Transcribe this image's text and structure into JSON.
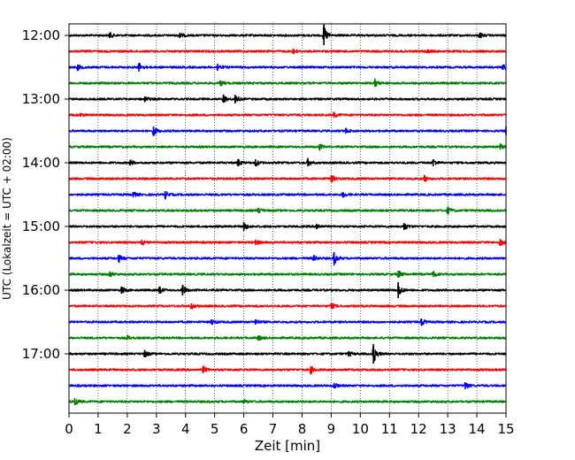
{
  "chart_data": {
    "type": "line",
    "subtype": "seismogram-helicorder",
    "xlabel": "Zeit  [min]",
    "ylabel": "UTC (Lokalzeit = UTC + 02:00)",
    "xlim": [
      0,
      15
    ],
    "x_ticks": [
      "0",
      "1",
      "2",
      "3",
      "4",
      "5",
      "6",
      "7",
      "8",
      "9",
      "10",
      "11",
      "12",
      "13",
      "14",
      "15"
    ],
    "y_tick_labels": [
      "12:00",
      "13:00",
      "14:00",
      "15:00",
      "16:00",
      "17:00"
    ],
    "grid": "vertical dotted lines at each minute",
    "trace_interval_minutes": 15,
    "trace_colors": [
      "#000000",
      "#ff0000",
      "#0000ff",
      "#008000"
    ],
    "traces": [
      {
        "start": "12:00",
        "color": "#000000",
        "events": [
          {
            "t": 8.75,
            "amp": 11
          },
          {
            "t": 1.4,
            "amp": 3
          },
          {
            "t": 3.8,
            "amp": 3
          },
          {
            "t": 14.1,
            "amp": 3
          }
        ]
      },
      {
        "start": "12:15",
        "color": "#ff0000",
        "events": [
          {
            "t": 7.7,
            "amp": 3
          },
          {
            "t": 12.3,
            "amp": 2
          }
        ]
      },
      {
        "start": "12:30",
        "color": "#0000ff",
        "events": [
          {
            "t": 2.4,
            "amp": 5
          },
          {
            "t": 5.1,
            "amp": 4
          },
          {
            "t": 0.3,
            "amp": 3
          },
          {
            "t": 14.9,
            "amp": 3
          }
        ]
      },
      {
        "start": "12:45",
        "color": "#008000",
        "events": [
          {
            "t": 10.5,
            "amp": 4
          },
          {
            "t": 5.2,
            "amp": 3
          }
        ]
      },
      {
        "start": "13:00",
        "color": "#000000",
        "events": [
          {
            "t": 5.3,
            "amp": 4
          },
          {
            "t": 5.7,
            "amp": 5
          },
          {
            "t": 2.6,
            "amp": 3
          }
        ]
      },
      {
        "start": "13:15",
        "color": "#ff0000",
        "events": [
          {
            "t": 9.1,
            "amp": 3
          },
          {
            "t": 0.4,
            "amp": 2
          }
        ]
      },
      {
        "start": "13:30",
        "color": "#0000ff",
        "events": [
          {
            "t": 2.9,
            "amp": 5
          },
          {
            "t": 9.5,
            "amp": 3
          },
          {
            "t": 15.0,
            "amp": 5
          }
        ]
      },
      {
        "start": "13:45",
        "color": "#008000",
        "events": [
          {
            "t": 8.6,
            "amp": 3
          },
          {
            "t": 14.8,
            "amp": 3
          }
        ]
      },
      {
        "start": "14:00",
        "color": "#000000",
        "events": [
          {
            "t": 5.8,
            "amp": 4
          },
          {
            "t": 6.4,
            "amp": 4
          },
          {
            "t": 8.2,
            "amp": 4
          },
          {
            "t": 12.5,
            "amp": 4
          },
          {
            "t": 2.1,
            "amp": 3
          }
        ]
      },
      {
        "start": "14:15",
        "color": "#ff0000",
        "events": [
          {
            "t": 9.0,
            "amp": 4
          },
          {
            "t": 12.2,
            "amp": 3
          }
        ]
      },
      {
        "start": "14:30",
        "color": "#0000ff",
        "events": [
          {
            "t": 3.3,
            "amp": 4
          },
          {
            "t": 2.2,
            "amp": 3
          },
          {
            "t": 9.4,
            "amp": 3
          }
        ]
      },
      {
        "start": "14:45",
        "color": "#008000",
        "events": [
          {
            "t": 13.0,
            "amp": 4
          },
          {
            "t": 6.5,
            "amp": 3
          }
        ]
      },
      {
        "start": "15:00",
        "color": "#000000",
        "events": [
          {
            "t": 6.0,
            "amp": 5
          },
          {
            "t": 11.5,
            "amp": 4
          },
          {
            "t": 8.5,
            "amp": 3
          }
        ]
      },
      {
        "start": "15:15",
        "color": "#ff0000",
        "events": [
          {
            "t": 14.8,
            "amp": 4
          },
          {
            "t": 2.5,
            "amp": 3
          },
          {
            "t": 6.4,
            "amp": 3
          }
        ]
      },
      {
        "start": "15:30",
        "color": "#0000ff",
        "events": [
          {
            "t": 9.1,
            "amp": 7
          },
          {
            "t": 1.7,
            "amp": 4
          },
          {
            "t": 8.4,
            "amp": 3
          }
        ]
      },
      {
        "start": "15:45",
        "color": "#008000",
        "events": [
          {
            "t": 11.3,
            "amp": 4
          },
          {
            "t": 12.5,
            "amp": 3
          },
          {
            "t": 1.4,
            "amp": 3
          }
        ]
      },
      {
        "start": "16:00",
        "color": "#000000",
        "events": [
          {
            "t": 11.3,
            "amp": 9
          },
          {
            "t": 3.9,
            "amp": 6
          },
          {
            "t": 1.8,
            "amp": 4
          },
          {
            "t": 3.1,
            "amp": 4
          }
        ]
      },
      {
        "start": "16:15",
        "color": "#ff0000",
        "events": [
          {
            "t": 4.2,
            "amp": 3
          },
          {
            "t": 9.0,
            "amp": 3
          }
        ]
      },
      {
        "start": "16:30",
        "color": "#0000ff",
        "events": [
          {
            "t": 6.4,
            "amp": 3
          },
          {
            "t": 12.1,
            "amp": 4
          },
          {
            "t": 4.9,
            "amp": 3
          }
        ]
      },
      {
        "start": "16:45",
        "color": "#008000",
        "events": [
          {
            "t": 6.5,
            "amp": 3
          },
          {
            "t": 2.0,
            "amp": 2
          }
        ]
      },
      {
        "start": "17:00",
        "color": "#000000",
        "events": [
          {
            "t": 10.45,
            "amp": 11
          },
          {
            "t": 2.6,
            "amp": 4
          },
          {
            "t": 9.6,
            "amp": 3
          }
        ]
      },
      {
        "start": "17:15",
        "color": "#ff0000",
        "events": [
          {
            "t": 4.6,
            "amp": 4
          },
          {
            "t": 8.3,
            "amp": 4
          }
        ]
      },
      {
        "start": "17:30",
        "color": "#0000ff",
        "events": [
          {
            "t": 13.6,
            "amp": 4
          },
          {
            "t": 9.1,
            "amp": 3
          }
        ]
      },
      {
        "start": "17:45",
        "color": "#008000",
        "events": [
          {
            "t": 0.2,
            "amp": 4
          },
          {
            "t": 6.0,
            "amp": 2
          }
        ]
      }
    ]
  }
}
